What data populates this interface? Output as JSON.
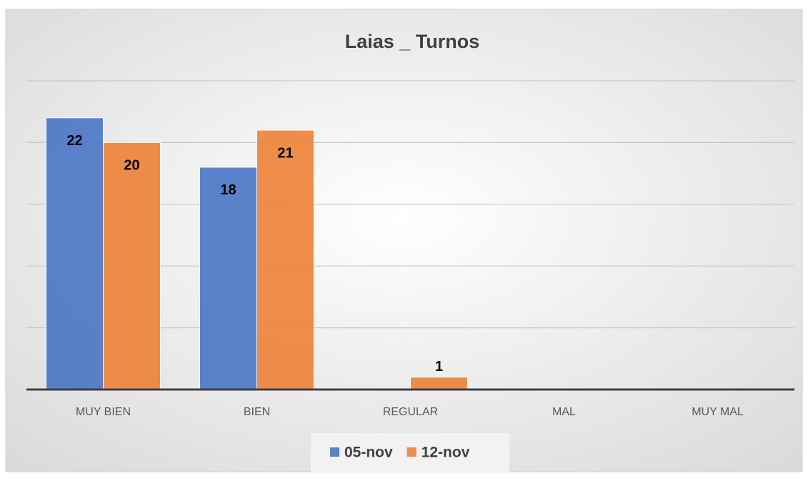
{
  "chart_data": {
    "type": "bar",
    "title": "Laias _ Turnos",
    "categories": [
      "MUY BIEN",
      "BIEN",
      "REGULAR",
      "MAL",
      "MUY MAL"
    ],
    "series": [
      {
        "name": "05-nov",
        "color": "#4472c4",
        "values": [
          22,
          18,
          null,
          null,
          null
        ]
      },
      {
        "name": "12-nov",
        "color": "#ed7d31",
        "values": [
          20,
          21,
          1,
          null,
          null
        ]
      }
    ],
    "ylim": [
      0,
      25
    ],
    "yticks": [
      0,
      5,
      10,
      15,
      20,
      25
    ],
    "ytick_labels": false,
    "grid": true,
    "legend": "bottom"
  }
}
